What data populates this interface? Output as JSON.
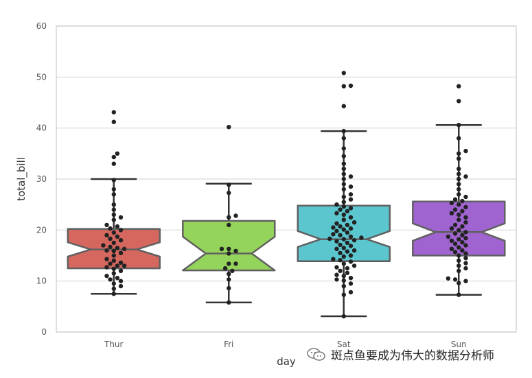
{
  "chart_data": {
    "type": "box",
    "xlabel": "day",
    "ylabel": "total_bill",
    "ylim": [
      0,
      60
    ],
    "yticks": [
      0,
      10,
      20,
      30,
      40,
      50,
      60
    ],
    "grid": "y",
    "notched": true,
    "categories": [
      "Thur",
      "Fri",
      "Sat",
      "Sun"
    ],
    "colors": [
      "#d5675f",
      "#95d45b",
      "#5cc6cf",
      "#a064d0"
    ],
    "boxes": [
      {
        "category": "Thur",
        "whislo": 7.5,
        "q1": 12.5,
        "med": 16.2,
        "q3": 20.2,
        "whishi": 30.0,
        "notch_lo": 14.8,
        "notch_hi": 17.6
      },
      {
        "category": "Fri",
        "whislo": 5.8,
        "q1": 12.1,
        "med": 15.4,
        "q3": 21.8,
        "whishi": 29.1,
        "notch_lo": 12.1,
        "notch_hi": 18.7
      },
      {
        "category": "Sat",
        "whislo": 3.1,
        "q1": 13.9,
        "med": 18.2,
        "q3": 24.8,
        "whishi": 39.4,
        "notch_lo": 16.7,
        "notch_hi": 19.8
      },
      {
        "category": "Sun",
        "whislo": 7.3,
        "q1": 15.0,
        "med": 19.6,
        "q3": 25.6,
        "whishi": 40.6,
        "notch_lo": 17.9,
        "notch_hi": 21.3
      }
    ],
    "points": [
      {
        "category": "Thur",
        "values": [
          7.5,
          8.5,
          9.0,
          9.5,
          10.0,
          10.3,
          10.6,
          11.0,
          11.5,
          12.0,
          12.4,
          12.7,
          13.0,
          13.0,
          13.4,
          13.6,
          14.0,
          14.3,
          15.0,
          15.5,
          15.9,
          16.0,
          16.3,
          16.5,
          16.7,
          17.0,
          17.5,
          18.0,
          18.3,
          18.7,
          19.0,
          19.5,
          20.0,
          20.3,
          20.7,
          21.0,
          22.0,
          22.5,
          23.0,
          24.0,
          25.0,
          27.0,
          28.0,
          29.8,
          33.0,
          34.3,
          35.0,
          41.2,
          43.1
        ]
      },
      {
        "category": "Fri",
        "values": [
          5.8,
          8.6,
          10.3,
          11.4,
          12.0,
          12.5,
          13.4,
          13.4,
          15.4,
          15.9,
          16.3,
          16.3,
          21.0,
          22.5,
          22.8,
          27.3,
          28.9,
          40.2
        ]
      },
      {
        "category": "Sat",
        "values": [
          3.1,
          7.3,
          7.8,
          9.0,
          9.5,
          10.1,
          10.3,
          10.6,
          11.0,
          11.2,
          11.6,
          12.0,
          12.5,
          12.7,
          13.0,
          13.4,
          13.8,
          14.1,
          14.3,
          14.8,
          15.0,
          15.5,
          15.8,
          16.0,
          16.3,
          16.5,
          16.9,
          17.1,
          17.5,
          17.8,
          18.0,
          18.2,
          18.3,
          18.5,
          18.7,
          19.0,
          19.2,
          19.5,
          19.8,
          20.1,
          20.3,
          20.5,
          20.7,
          21.0,
          21.3,
          21.5,
          22.0,
          22.5,
          23.0,
          23.3,
          23.7,
          24.0,
          24.3,
          24.6,
          25.0,
          25.5,
          26.0,
          26.5,
          27.0,
          28.0,
          28.5,
          29.0,
          30.0,
          30.5,
          31.0,
          32.0,
          33.0,
          34.5,
          36.0,
          38.0,
          39.4,
          44.3,
          48.2,
          48.3,
          50.8
        ]
      },
      {
        "category": "Sun",
        "values": [
          7.3,
          9.6,
          10.0,
          10.3,
          10.5,
          12.0,
          12.5,
          13.0,
          13.5,
          14.0,
          14.5,
          15.0,
          15.4,
          15.7,
          16.0,
          16.3,
          16.6,
          17.0,
          17.3,
          17.6,
          17.9,
          18.2,
          18.4,
          18.7,
          19.0,
          19.3,
          19.6,
          20.0,
          20.3,
          20.7,
          21.0,
          21.5,
          22.0,
          22.5,
          23.0,
          23.3,
          23.7,
          24.0,
          24.5,
          25.0,
          25.3,
          25.7,
          26.0,
          26.5,
          27.0,
          28.0,
          29.0,
          30.0,
          30.5,
          31.0,
          32.0,
          34.0,
          35.0,
          35.5,
          38.0,
          40.6,
          45.3,
          48.2
        ]
      }
    ]
  },
  "watermark": {
    "text": "斑点鱼要成为伟大的数据分析师"
  },
  "style": {
    "grid_color": "#d9d9d9",
    "frame_color": "#cccccc",
    "box_edge_color": "#606060",
    "point_color": "#222222"
  }
}
